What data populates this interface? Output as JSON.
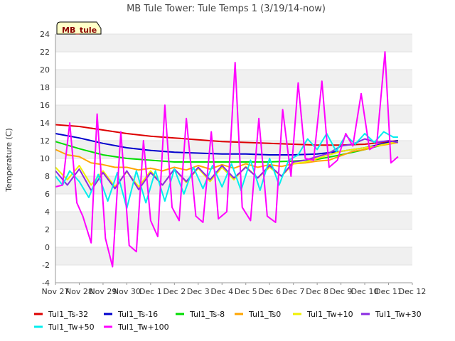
{
  "chart_data": {
    "type": "line",
    "title": "MB Tule Tower: Tule Temps 1 (3/19/14-now)",
    "ylabel": "Temperature (C)",
    "xlabel": "",
    "badge": "MB_tule",
    "ylim": [
      -4,
      24
    ],
    "xlim": [
      0,
      15
    ],
    "yticks": [
      -4,
      -2,
      0,
      2,
      4,
      6,
      8,
      10,
      12,
      14,
      16,
      18,
      20,
      22,
      24
    ],
    "x_tick_labels": [
      "Nov 27",
      "Nov 28",
      "Nov 29",
      "Nov 30",
      "Dec 1",
      "Dec 2",
      "Dec 3",
      "Dec 4",
      "Dec 5",
      "Dec 6",
      "Dec 7",
      "Dec 8",
      "Dec 9",
      "Dec 10",
      "Dec 11",
      "Dec 12"
    ],
    "x_units": "days since Nov 27",
    "series": [
      {
        "name": "Tul1_Ts-32",
        "color": "#dd0000",
        "x": [
          0,
          1,
          2,
          3,
          4,
          5,
          6,
          7,
          8,
          9,
          10,
          11,
          12,
          13,
          14,
          14.4
        ],
        "y": [
          13.8,
          13.6,
          13.2,
          12.8,
          12.5,
          12.3,
          12.1,
          11.9,
          11.8,
          11.7,
          11.6,
          11.5,
          11.5,
          11.6,
          11.9,
          12.0
        ]
      },
      {
        "name": "Tul1_Ts-16",
        "color": "#0000cc",
        "x": [
          0,
          1,
          2,
          3,
          4,
          5,
          6,
          7,
          8,
          9,
          10,
          11,
          12,
          13,
          14,
          14.4
        ],
        "y": [
          12.8,
          12.3,
          11.7,
          11.2,
          10.9,
          10.7,
          10.6,
          10.5,
          10.5,
          10.4,
          10.4,
          10.5,
          10.8,
          11.2,
          11.8,
          12.0
        ]
      },
      {
        "name": "Tul1_Ts-8",
        "color": "#00dd00",
        "x": [
          0,
          1,
          2,
          3,
          4,
          5,
          6,
          7,
          8,
          9,
          10,
          11,
          12,
          13,
          14,
          14.4
        ],
        "y": [
          11.9,
          11.1,
          10.4,
          10.0,
          9.8,
          9.6,
          9.6,
          9.6,
          9.6,
          9.6,
          9.7,
          9.9,
          10.4,
          11.0,
          11.7,
          11.9
        ]
      },
      {
        "name": "Tul1_Ts0",
        "color": "#ffa500",
        "x": [
          0,
          0.5,
          1,
          1.5,
          2,
          2.5,
          3,
          3.5,
          4,
          4.5,
          5,
          5.5,
          6,
          6.5,
          7,
          7.5,
          8,
          8.5,
          9,
          9.5,
          10,
          10.5,
          11,
          11.5,
          12,
          12.5,
          13,
          13.5,
          14,
          14.4
        ],
        "y": [
          11.0,
          10.4,
          10.2,
          9.5,
          9.3,
          9.0,
          9.0,
          8.7,
          8.9,
          8.6,
          9.0,
          8.7,
          9.2,
          8.8,
          9.3,
          8.9,
          9.4,
          9.0,
          9.3,
          9.1,
          9.4,
          9.5,
          9.7,
          9.8,
          10.3,
          10.8,
          11.0,
          11.4,
          11.6,
          11.8
        ]
      },
      {
        "name": "Tul1_Tw+10",
        "color": "#f0f000",
        "x": [
          0,
          0.5,
          1,
          1.5,
          2,
          2.5,
          3,
          3.5,
          4,
          4.5,
          5,
          5.5,
          6,
          6.5,
          7,
          7.5,
          8,
          8.5,
          9,
          9.5,
          10,
          10.5,
          11,
          11.5,
          12,
          12.5,
          13,
          13.5,
          14,
          14.4
        ],
        "y": [
          9.0,
          7.6,
          9.2,
          7.0,
          8.6,
          6.8,
          8.5,
          6.8,
          8.6,
          7.0,
          8.8,
          7.3,
          8.9,
          7.4,
          9.0,
          7.6,
          9.1,
          7.8,
          9.0,
          8.0,
          9.4,
          9.6,
          10.0,
          10.4,
          10.8,
          11.0,
          11.2,
          11.4,
          11.7,
          11.9
        ]
      },
      {
        "name": "Tul1_Tw+30",
        "color": "#8a2be2",
        "x": [
          0,
          0.5,
          1,
          1.5,
          2,
          2.5,
          3,
          3.5,
          4,
          4.5,
          5,
          5.5,
          6,
          6.5,
          7,
          7.5,
          8,
          8.5,
          9,
          9.5,
          10,
          10.5,
          11,
          11.5,
          12,
          12.5,
          13,
          13.5,
          14,
          14.4
        ],
        "y": [
          8.6,
          7.0,
          8.8,
          6.4,
          8.4,
          6.6,
          8.6,
          6.5,
          8.4,
          7.0,
          8.8,
          7.4,
          9.0,
          7.6,
          9.2,
          7.8,
          9.0,
          7.8,
          9.2,
          8.0,
          9.6,
          9.8,
          10.2,
          10.6,
          11.4,
          11.6,
          12.2,
          11.8,
          12.0,
          11.8
        ]
      },
      {
        "name": "Tul1_Tw+50",
        "color": "#00eeee",
        "x": [
          0,
          0.3,
          0.6,
          1,
          1.4,
          1.8,
          2.2,
          2.6,
          3,
          3.4,
          3.8,
          4.2,
          4.6,
          5,
          5.4,
          5.8,
          6.2,
          6.6,
          7,
          7.4,
          7.8,
          8.2,
          8.6,
          9,
          9.4,
          9.8,
          10.2,
          10.6,
          11,
          11.4,
          11.8,
          12.2,
          12.6,
          13,
          13.4,
          13.8,
          14.2,
          14.4
        ],
        "y": [
          8.0,
          7.0,
          8.6,
          7.4,
          5.6,
          8.2,
          5.2,
          8.4,
          4.4,
          8.6,
          5.0,
          8.6,
          5.2,
          8.8,
          6.0,
          9.0,
          6.6,
          9.2,
          6.8,
          9.4,
          6.4,
          9.8,
          6.4,
          10.0,
          7.0,
          9.8,
          10.4,
          12.2,
          11.0,
          12.8,
          10.8,
          12.6,
          11.6,
          12.8,
          11.8,
          13.0,
          12.4,
          12.4
        ]
      },
      {
        "name": "Tul1_Tw+100",
        "color": "#ff00ff",
        "x": [
          0,
          0.3,
          0.6,
          0.9,
          1.15,
          1.5,
          1.75,
          2.1,
          2.4,
          2.75,
          3.1,
          3.4,
          3.7,
          4,
          4.3,
          4.6,
          4.9,
          5.2,
          5.5,
          5.9,
          6.2,
          6.55,
          6.85,
          7.2,
          7.55,
          7.85,
          8.2,
          8.55,
          8.9,
          9.25,
          9.55,
          9.9,
          10.2,
          10.5,
          10.85,
          11.2,
          11.5,
          11.85,
          12.2,
          12.5,
          12.85,
          13.2,
          13.5,
          13.85,
          14.1,
          14.4
        ],
        "y": [
          6.8,
          7.0,
          14.0,
          5.0,
          3.5,
          0.5,
          15.0,
          1.0,
          -2.2,
          13.0,
          0.2,
          -0.5,
          12.0,
          3.0,
          1.2,
          16.0,
          4.5,
          3.0,
          14.5,
          3.5,
          2.8,
          13.0,
          3.2,
          4.0,
          20.8,
          4.5,
          3.0,
          14.5,
          3.5,
          2.8,
          15.5,
          8.0,
          18.5,
          10.0,
          9.8,
          18.7,
          9.0,
          9.8,
          12.8,
          11.4,
          17.3,
          11.0,
          11.5,
          22.0,
          9.5,
          10.2
        ]
      }
    ]
  }
}
